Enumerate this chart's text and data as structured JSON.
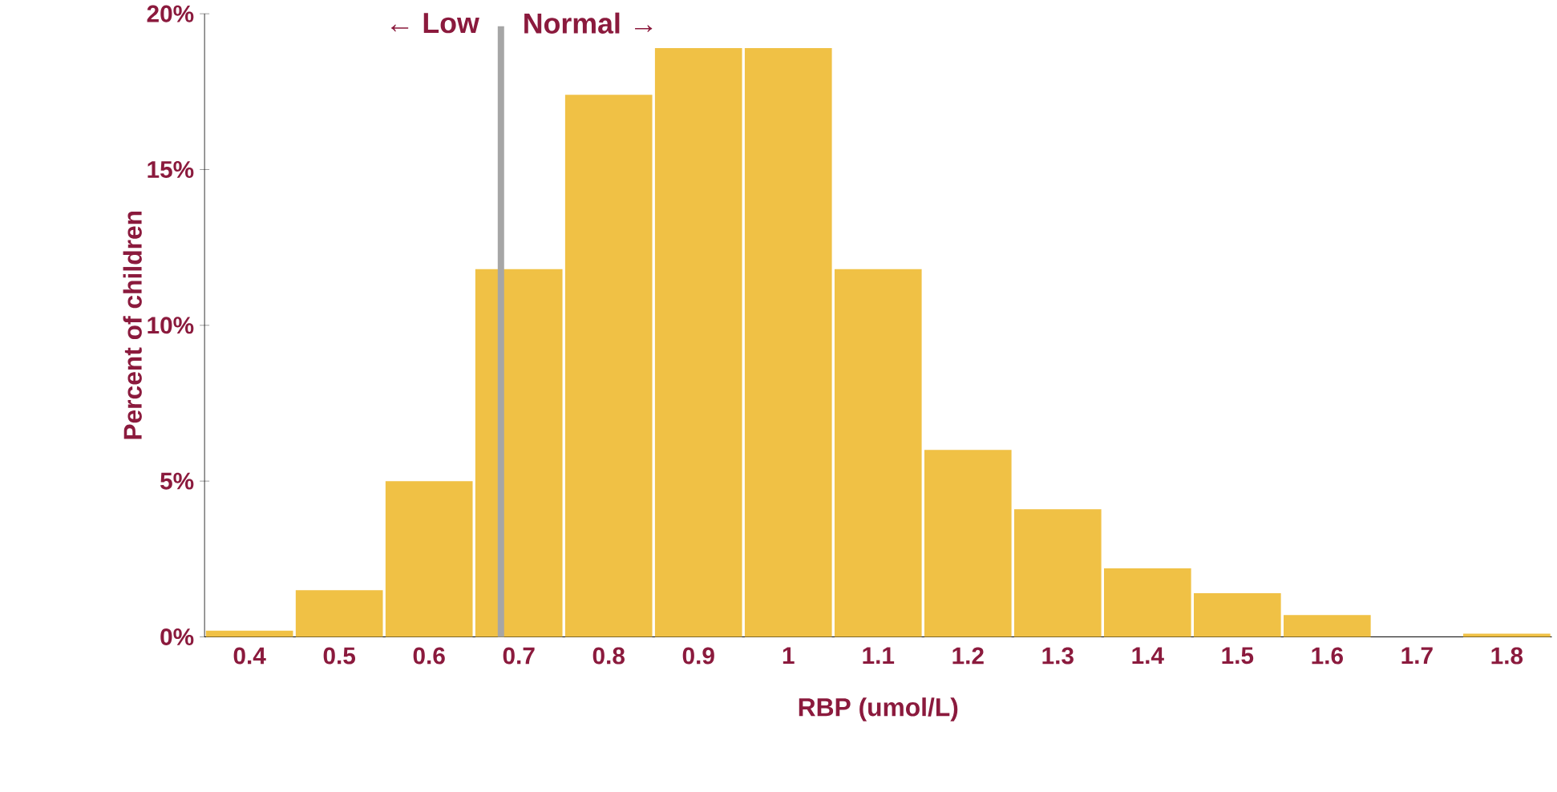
{
  "chart_data": {
    "type": "histogram",
    "xlabel": "RBP (umol/L)",
    "ylabel": "Percent of children",
    "bins": [
      0.35,
      0.45,
      0.55,
      0.65,
      0.75,
      0.85,
      0.95,
      1.05,
      1.15,
      1.25,
      1.35,
      1.45,
      1.55,
      1.65,
      1.75,
      1.85
    ],
    "values": [
      0.2,
      1.5,
      5.0,
      11.8,
      17.4,
      18.9,
      18.9,
      11.8,
      6.0,
      4.1,
      2.2,
      1.4,
      0.7,
      0,
      0.1
    ],
    "color": "#f0c145",
    "xlim": [
      0.35,
      1.85
    ],
    "ylim": [
      0,
      20
    ],
    "xticks": [
      0.4,
      0.5,
      0.6,
      0.7,
      0.8,
      0.9,
      1,
      1.1,
      1.2,
      1.3,
      1.4,
      1.5,
      1.6,
      1.7,
      1.8
    ],
    "yticks": [
      {
        "value": 0,
        "label": "0%"
      },
      {
        "value": 5,
        "label": "5%"
      },
      {
        "value": 10,
        "label": "10%"
      },
      {
        "value": 15,
        "label": "15%"
      },
      {
        "value": 20,
        "label": "20%"
      }
    ],
    "ref_lines": [
      {
        "axis": "x",
        "value": 0.68,
        "color": "#a6a6a6"
      }
    ],
    "annotations": [
      "← Low",
      "Normal →"
    ],
    "grid": false
  }
}
